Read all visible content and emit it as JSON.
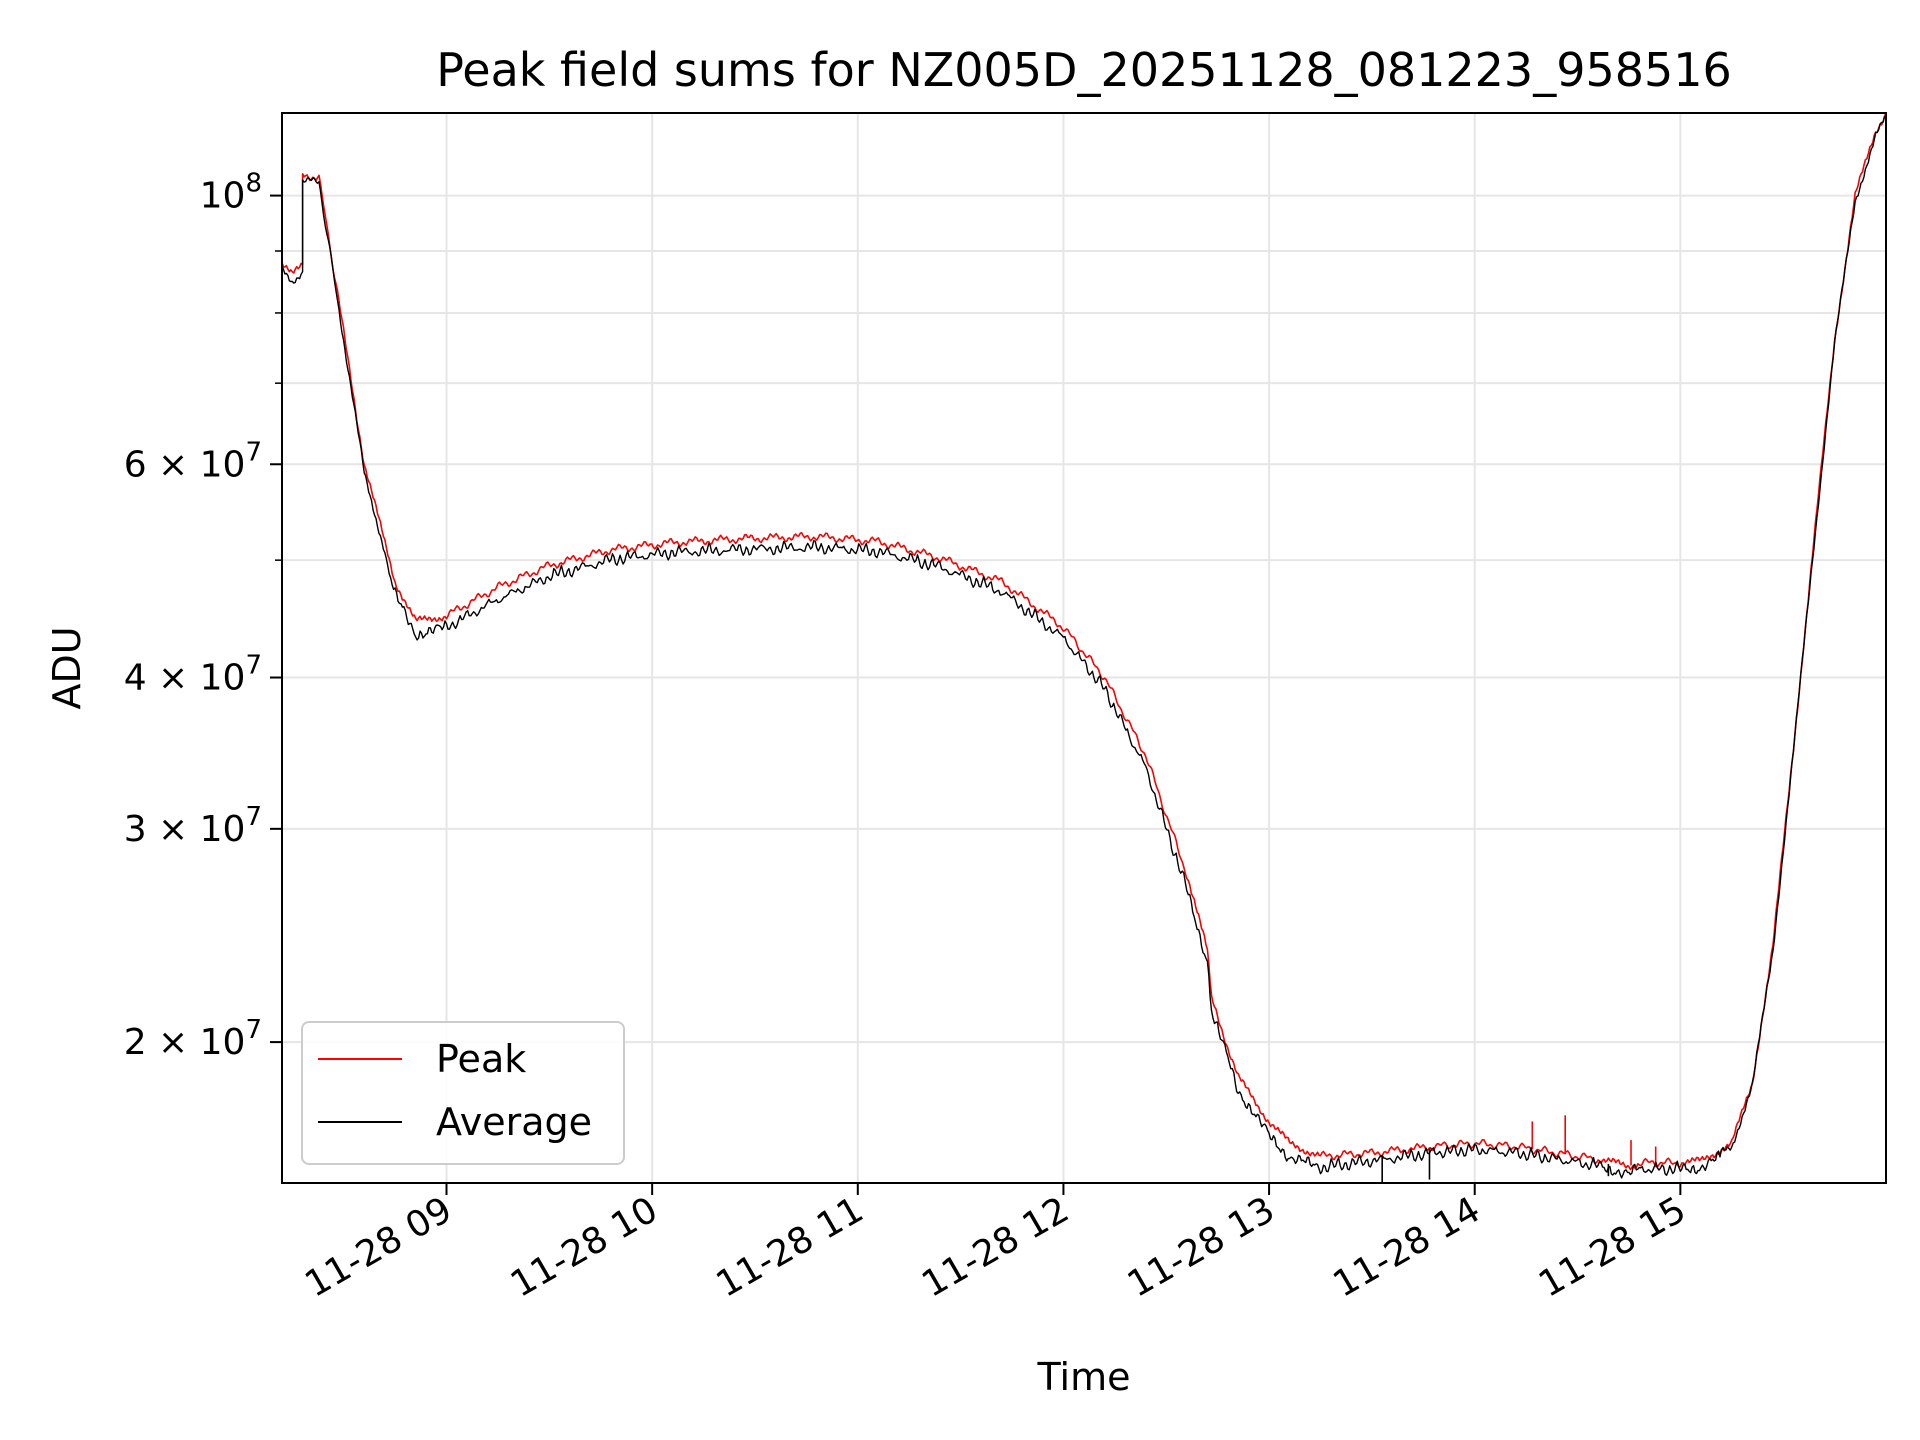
{
  "chart_data": {
    "type": "line",
    "title": "Peak field sums for NZ005D_20251128_081223_958516",
    "xlabel": "Time",
    "ylabel": "ADU",
    "yscale": "log",
    "xlim": [
      8.2,
      16.0
    ],
    "ylim": [
      15300000,
      117000000
    ],
    "grid": true,
    "legend_position": "lower-left",
    "x_unit": "hours of day 2025-11-28",
    "x_ticks": [
      {
        "value": 9,
        "label": "11-28 09"
      },
      {
        "value": 10,
        "label": "11-28 10"
      },
      {
        "value": 11,
        "label": "11-28 11"
      },
      {
        "value": 12,
        "label": "11-28 12"
      },
      {
        "value": 13,
        "label": "11-28 13"
      },
      {
        "value": 14,
        "label": "11-28 14"
      },
      {
        "value": 15,
        "label": "11-28 15"
      }
    ],
    "y_ticks": [
      {
        "value": 100000000,
        "base": "10",
        "exp": "8"
      },
      {
        "value": 60000000,
        "base": "6 × 10",
        "exp": "7"
      },
      {
        "value": 40000000,
        "base": "4 × 10",
        "exp": "7"
      },
      {
        "value": 30000000,
        "base": "3 × 10",
        "exp": "7"
      },
      {
        "value": 20000000,
        "base": "2 × 10",
        "exp": "7"
      }
    ],
    "y_minor_ticks": [
      50000000,
      70000000,
      80000000,
      90000000
    ],
    "series": [
      {
        "name": "Peak",
        "color": "#ff0000",
        "x": [
          8.2,
          8.25,
          8.3,
          8.3,
          8.38,
          8.47,
          8.6,
          8.75,
          8.85,
          9.0,
          9.25,
          9.5,
          9.8,
          10.1,
          10.45,
          10.8,
          11.1,
          11.4,
          11.7,
          12.0,
          12.2,
          12.4,
          12.6,
          12.7,
          12.72,
          12.85,
          13.0,
          13.1,
          13.25,
          13.5,
          13.8,
          14.0,
          14.2,
          14.4,
          14.6,
          14.75,
          14.8,
          15.0,
          15.1,
          15.25,
          15.35,
          15.45,
          15.55,
          15.65,
          15.75,
          15.85,
          15.95,
          16.0
        ],
        "y": [
          88000000,
          86000000,
          87500000,
          104000000,
          103500000,
          83000000,
          60000000,
          48000000,
          44500000,
          45000000,
          47500000,
          49500000,
          51000000,
          51700000,
          52100000,
          52300000,
          51800000,
          50200000,
          48000000,
          44000000,
          40000000,
          34500000,
          27500000,
          23800000,
          21700000,
          18700000,
          17200000,
          16500000,
          16100000,
          16200000,
          16400000,
          16500000,
          16400000,
          16200000,
          16000000,
          15800000,
          15900000,
          15900000,
          15950000,
          16500000,
          18500000,
          24000000,
          35000000,
          52000000,
          76000000,
          100000000,
          113000000,
          117000000
        ],
        "spikes": [
          {
            "x": 14.28,
            "y": 17200000
          },
          {
            "x": 14.44,
            "y": 17400000
          },
          {
            "x": 14.76,
            "y": 16600000
          },
          {
            "x": 14.88,
            "y": 16400000
          }
        ]
      },
      {
        "name": "Average",
        "color": "#000000",
        "x": [
          8.2,
          8.25,
          8.3,
          8.3,
          8.38,
          8.47,
          8.6,
          8.75,
          8.85,
          9.0,
          9.25,
          9.5,
          9.8,
          10.1,
          10.45,
          10.8,
          11.1,
          11.4,
          11.7,
          12.0,
          12.2,
          12.4,
          12.6,
          12.7,
          12.72,
          12.85,
          13.0,
          13.1,
          13.25,
          13.5,
          13.8,
          14.0,
          14.2,
          14.4,
          14.6,
          14.75,
          14.8,
          15.0,
          15.1,
          15.25,
          15.35,
          15.45,
          15.55,
          15.65,
          15.75,
          15.85,
          15.95,
          16.0
        ],
        "y": [
          87000000,
          85000000,
          86500000,
          103000000,
          102500000,
          82000000,
          59000000,
          47200000,
          43800000,
          44400000,
          46800000,
          48900000,
          50500000,
          51200000,
          51500000,
          51700000,
          51300000,
          49800000,
          47500000,
          43500000,
          39500000,
          34000000,
          27000000,
          23500000,
          21500000,
          18400000,
          16900000,
          16200000,
          15900000,
          16100000,
          16350000,
          16450000,
          16350000,
          16150000,
          15950000,
          15700000,
          15850000,
          15850000,
          15900000,
          16400000,
          18400000,
          23800000,
          34800000,
          51500000,
          75500000,
          99000000,
          112000000,
          116000000
        ],
        "spikes": [
          {
            "x": 13.55,
            "y": 15300000
          },
          {
            "x": 13.78,
            "y": 15400000
          },
          {
            "x": 14.65,
            "y": 15500000
          }
        ]
      }
    ]
  }
}
